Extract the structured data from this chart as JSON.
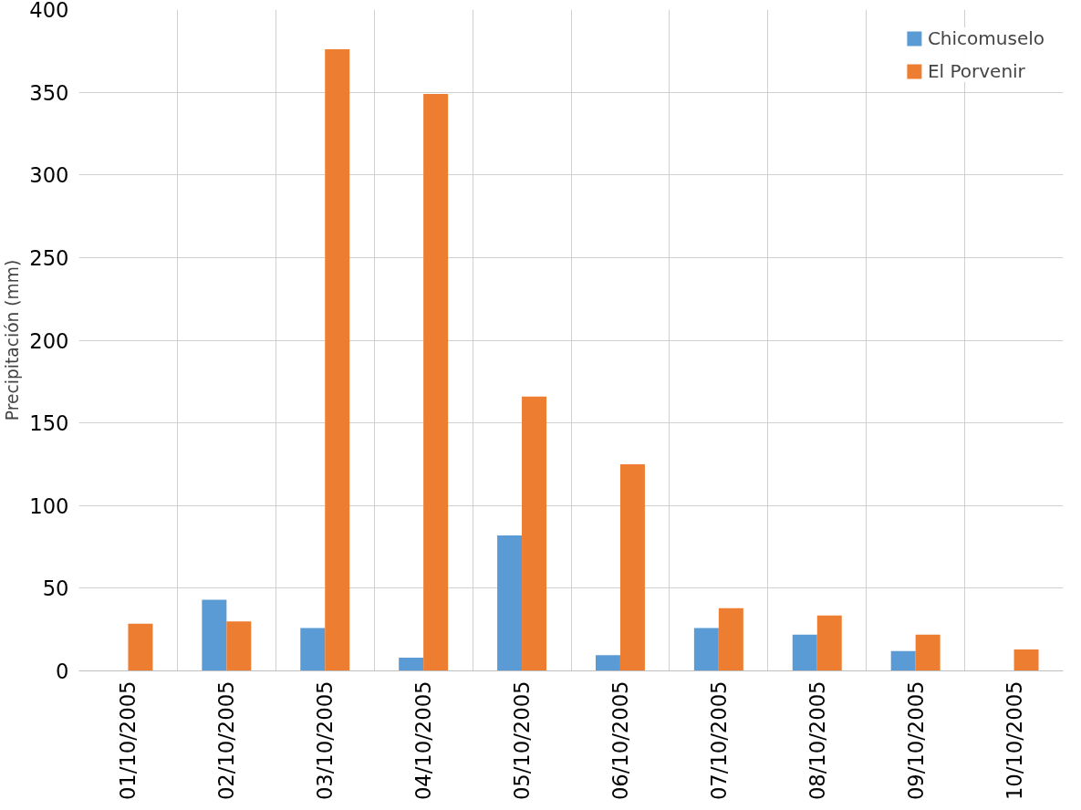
{
  "chart_data": {
    "type": "bar",
    "ylabel": "Precipitación (mm)",
    "categories": [
      "01/10/2005",
      "02/10/2005",
      "03/10/2005",
      "04/10/2005",
      "05/10/2005",
      "06/10/2005",
      "07/10/2005",
      "08/10/2005",
      "09/10/2005",
      "10/10/2005"
    ],
    "series": [
      {
        "name": "Chicomuselo",
        "color": "#5b9bd5",
        "values": [
          null,
          43,
          26,
          8,
          82,
          9.5,
          26,
          22,
          12,
          null
        ]
      },
      {
        "name": "El Porvenir",
        "color": "#ed7d31",
        "values": [
          28.5,
          30,
          376,
          349,
          166,
          125,
          38,
          33.5,
          22,
          13
        ]
      }
    ],
    "ylim": [
      0,
      400
    ],
    "yticks": [
      0,
      50,
      100,
      150,
      200,
      250,
      300,
      350,
      400
    ],
    "grid": true,
    "legend": "top right"
  }
}
